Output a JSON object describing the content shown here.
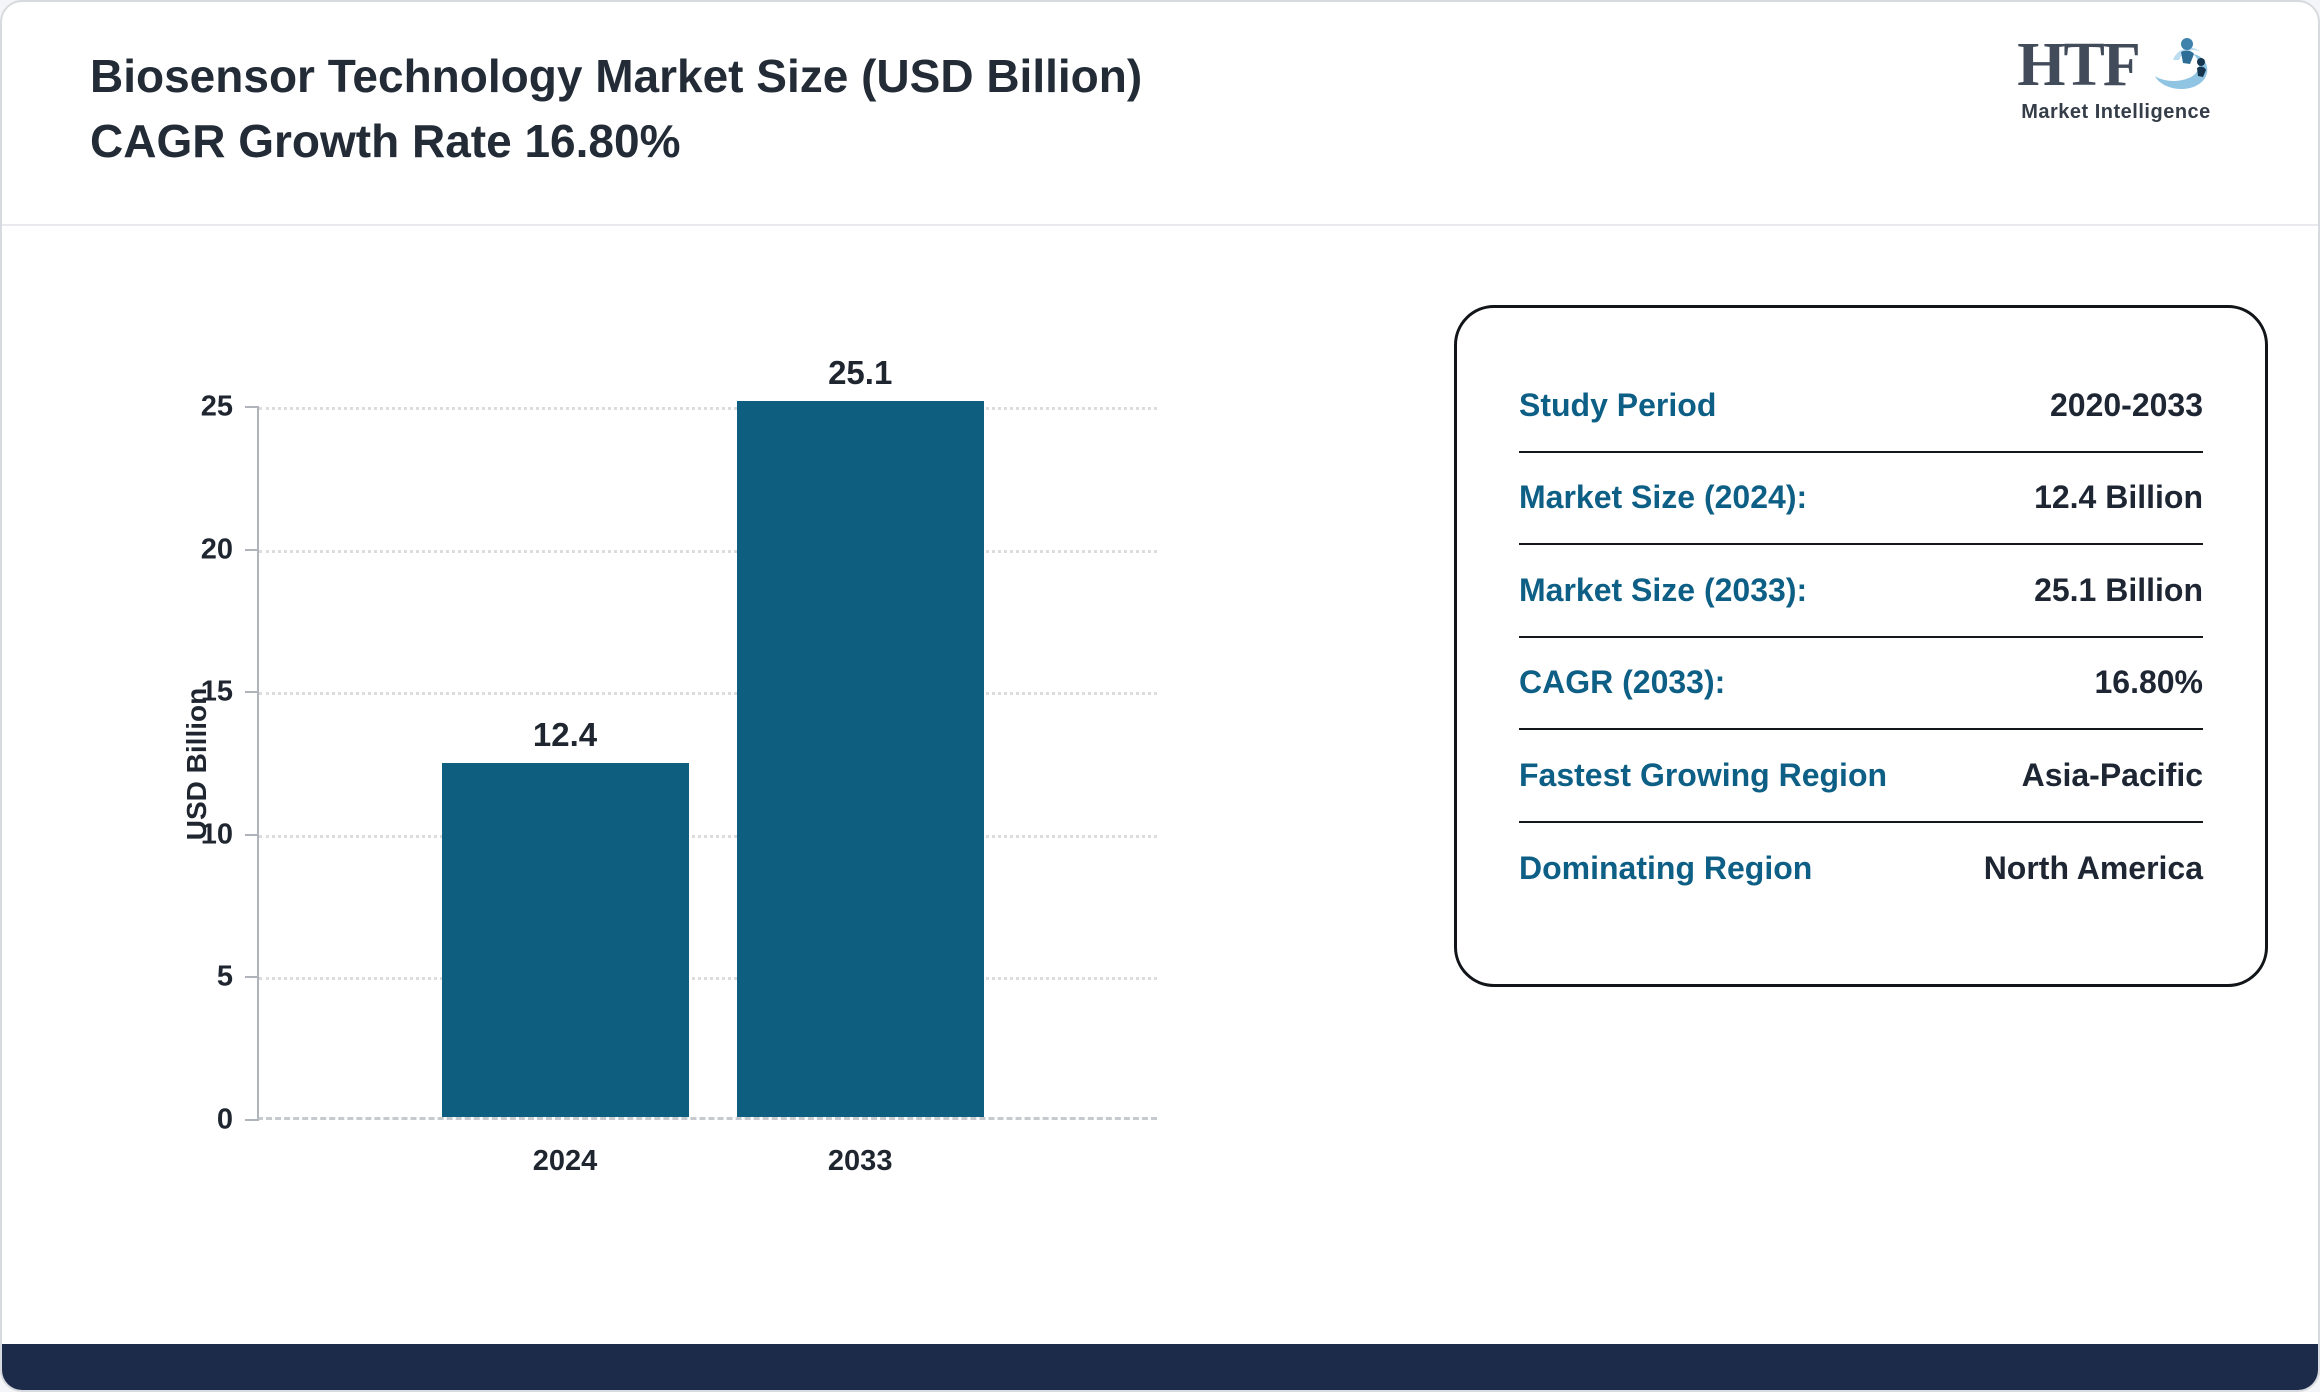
{
  "header": {
    "title_line1": "Biosensor Technology Market Size (USD Billion)",
    "title_line2": "CAGR Growth Rate 16.80%"
  },
  "logo": {
    "text": "HTF",
    "subtext": "Market Intelligence"
  },
  "chart_data": {
    "type": "bar",
    "title": "Biosensor Technology Market Size (USD Billion) CAGR Growth Rate 16.80%",
    "categories": [
      "2024",
      "2033"
    ],
    "values": [
      12.4,
      25.1
    ],
    "data_labels": [
      "12.4",
      "25.1"
    ],
    "xlabel": "",
    "ylabel": "USD Billion",
    "yticks": [
      0,
      5,
      10,
      15,
      20,
      25
    ],
    "ylim": [
      0,
      25
    ],
    "grid": true,
    "legend": false,
    "bar_color": "#0e5e80"
  },
  "info_panel": {
    "rows": [
      {
        "label": "Study Period",
        "value": "2020-2033"
      },
      {
        "label": "Market Size (2024):",
        "value": "12.4 Billion"
      },
      {
        "label": "Market Size (2033):",
        "value": "25.1 Billion"
      },
      {
        "label": "CAGR (2033):",
        "value": "16.80%"
      },
      {
        "label": "Fastest Growing Region",
        "value": "Asia-Pacific"
      },
      {
        "label": "Dominating Region",
        "value": "North America"
      }
    ]
  },
  "colors": {
    "bar": "#0e5e80",
    "accent_teal": "#0e5f86",
    "title_text": "#222b36",
    "footer_navy": "#1c2b4a"
  }
}
